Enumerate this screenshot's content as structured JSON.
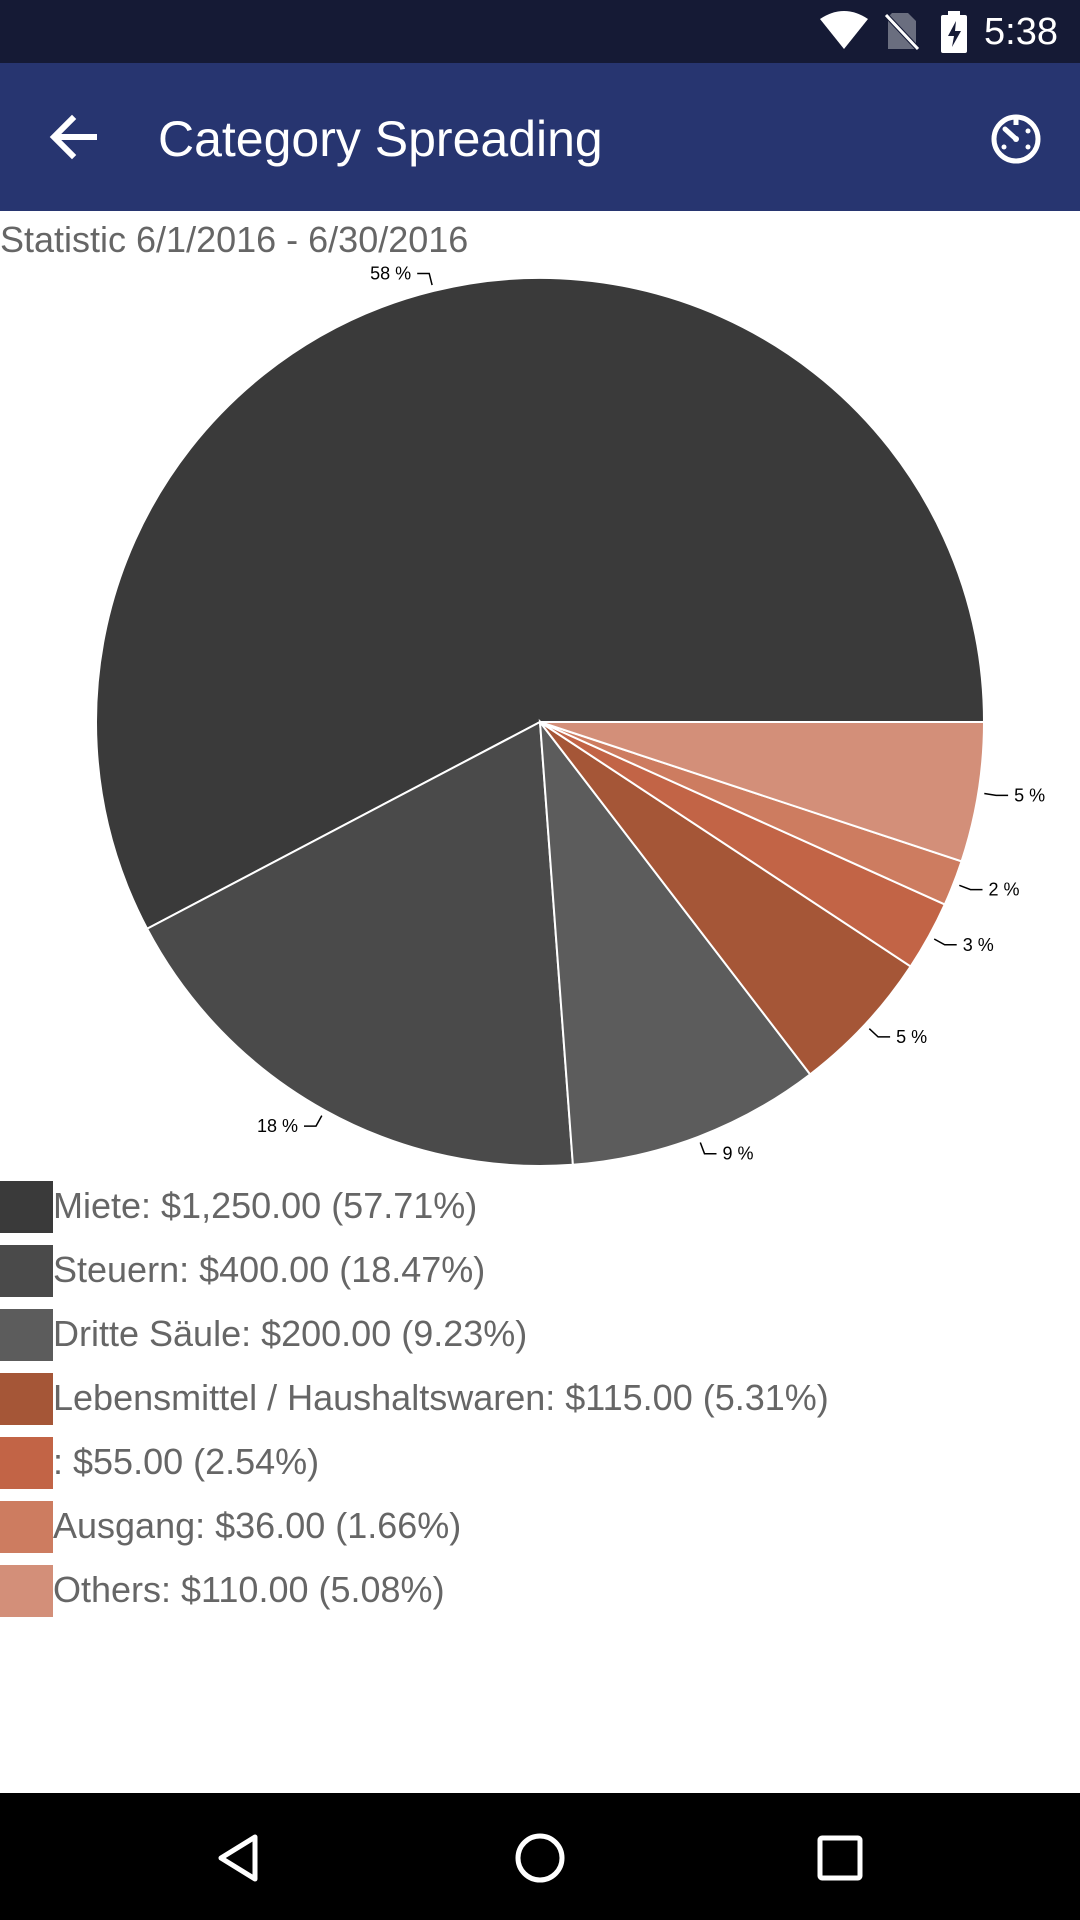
{
  "status_bar": {
    "time": "5:38",
    "icons": [
      "wifi-icon",
      "no-sim-icon",
      "battery-charging-icon"
    ]
  },
  "app_bar": {
    "title": "Category Spreading",
    "back_icon": "arrow-back-icon",
    "action_icon": "timer-icon"
  },
  "subtitle": "Statistic 6/1/2016 - 6/30/2016",
  "chart_data": {
    "type": "pie",
    "title": "",
    "slices": [
      {
        "label": "Miete",
        "amount": "$1,250.00",
        "percent": 57.71,
        "pct_label": "58 %",
        "legend": "Miete: $1,250.00 (57.71%)",
        "color": "#3a3a3a"
      },
      {
        "label": "Steuern",
        "amount": "$400.00",
        "percent": 18.47,
        "pct_label": "18 %",
        "legend": "Steuern: $400.00 (18.47%)",
        "color": "#4a4a4a"
      },
      {
        "label": "Dritte Säule",
        "amount": "$200.00",
        "percent": 9.23,
        "pct_label": "9 %",
        "legend": "Dritte Säule: $200.00 (9.23%)",
        "color": "#5c5c5c"
      },
      {
        "label": "Lebensmittel / Haushaltswaren",
        "amount": "$115.00",
        "percent": 5.31,
        "pct_label": "5 %",
        "legend": "Lebensmittel / Haushaltswaren: $115.00 (5.31%)",
        "color": "#a55637"
      },
      {
        "label": "",
        "amount": "$55.00",
        "percent": 2.54,
        "pct_label": "3 %",
        "legend": ": $55.00 (2.54%)",
        "color": "#c26446"
      },
      {
        "label": "Ausgang",
        "amount": "$36.00",
        "percent": 1.66,
        "pct_label": "2 %",
        "legend": "Ausgang: $36.00 (1.66%)",
        "color": "#cd7c60"
      },
      {
        "label": "Others",
        "amount": "$110.00",
        "percent": 5.08,
        "pct_label": "5 %",
        "legend": "Others: $110.00 (5.08%)",
        "color": "#d38f79"
      }
    ],
    "legend_placement": "bottom"
  },
  "nav_bar": {
    "icons": [
      "back-triangle-icon",
      "home-circle-icon",
      "recents-square-icon"
    ]
  }
}
